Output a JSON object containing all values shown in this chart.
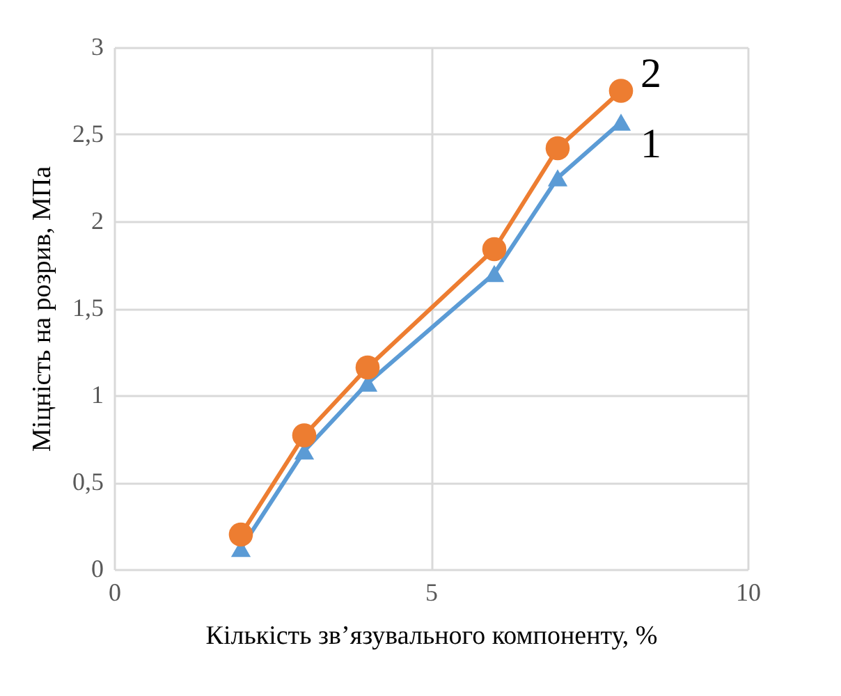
{
  "chart_data": {
    "type": "line",
    "xlabel": "Кількість зв’язувального компоненту, %",
    "ylabel": "Міцність на розрив, МПа",
    "xlim": [
      0,
      10
    ],
    "xticks": [
      0,
      5,
      10
    ],
    "ylim": [
      0,
      3
    ],
    "yticks": [
      0,
      {
        "value": 0.5,
        "label": "0,5"
      },
      1,
      {
        "value": 1.5,
        "label": "1,5"
      },
      2,
      {
        "value": 2.5,
        "label": "2,5"
      },
      3
    ],
    "grid": true,
    "legend": false,
    "series": [
      {
        "name": "1",
        "color": "#5b9bd5",
        "marker": "triangle",
        "x": [
          2,
          3,
          4,
          6,
          7,
          8
        ],
        "values": [
          0.12,
          0.68,
          1.07,
          1.7,
          2.25,
          2.57
        ]
      },
      {
        "name": "2",
        "color": "#ed7d31",
        "marker": "circle",
        "x": [
          2,
          3,
          4,
          6,
          7,
          8
        ],
        "values": [
          0.2,
          0.77,
          1.16,
          1.84,
          2.42,
          2.75
        ]
      }
    ]
  }
}
